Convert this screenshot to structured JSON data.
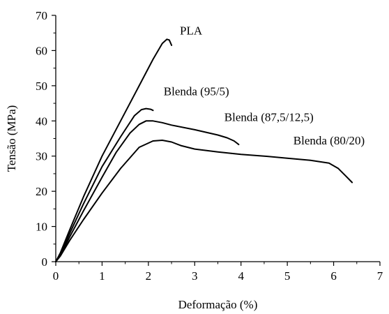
{
  "chart_data": {
    "type": "line",
    "xlabel": "Deformação (%)",
    "ylabel": "Tensão (MPa)",
    "xlim": [
      0,
      7
    ],
    "ylim": [
      0,
      70
    ],
    "xticks": [
      0,
      1,
      2,
      3,
      4,
      5,
      6,
      7
    ],
    "yticks": [
      0,
      10,
      20,
      30,
      40,
      50,
      60,
      70
    ],
    "grid": false,
    "series": [
      {
        "name": "PLA",
        "x": [
          0,
          0.1,
          0.3,
          0.6,
          1.0,
          1.4,
          1.8,
          2.1,
          2.3,
          2.4,
          2.45,
          2.5
        ],
        "y": [
          0,
          2.5,
          9,
          18.5,
          30,
          40,
          50,
          57.5,
          62,
          63.2,
          63,
          61.5
        ]
      },
      {
        "name": "Blenda (95/5)",
        "x": [
          0,
          0.1,
          0.3,
          0.6,
          1.0,
          1.4,
          1.7,
          1.85,
          1.95,
          2.05,
          2.1
        ],
        "y": [
          0,
          2.2,
          8,
          16.5,
          27,
          35.5,
          41.5,
          43.2,
          43.5,
          43.3,
          43
        ]
      },
      {
        "name": "Blenda (87,5/12,5)",
        "x": [
          0,
          0.1,
          0.3,
          0.6,
          1.0,
          1.3,
          1.6,
          1.8,
          1.95,
          2.1,
          2.3,
          2.5,
          3.0,
          3.5,
          3.7,
          3.85,
          3.95
        ],
        "y": [
          0,
          1.8,
          7,
          14.5,
          24,
          31,
          36.5,
          39,
          40,
          40,
          39.5,
          38.8,
          37.5,
          36,
          35.2,
          34.3,
          33.3
        ]
      },
      {
        "name": "Blenda (80/20)",
        "x": [
          0,
          0.1,
          0.3,
          0.6,
          1.0,
          1.4,
          1.8,
          2.1,
          2.3,
          2.5,
          2.7,
          3.0,
          3.5,
          4.0,
          4.5,
          5.0,
          5.5,
          5.9,
          6.1,
          6.25,
          6.4
        ],
        "y": [
          0,
          1.6,
          6,
          12,
          19.5,
          26.5,
          32.5,
          34.3,
          34.5,
          34,
          33,
          32,
          31.2,
          30.5,
          30,
          29.4,
          28.8,
          28,
          26.5,
          24.5,
          22.5
        ]
      }
    ]
  }
}
